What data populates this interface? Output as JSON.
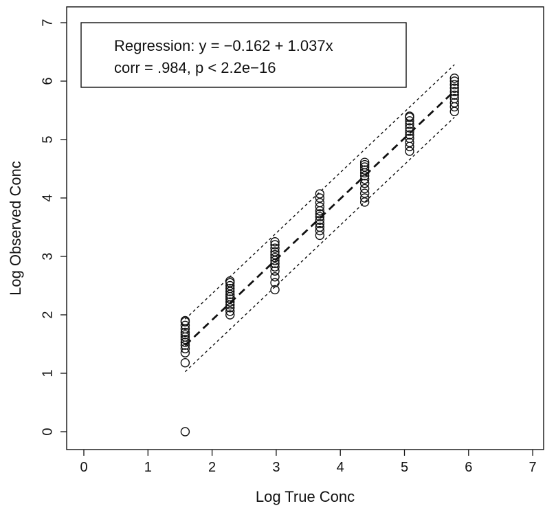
{
  "chart_data": {
    "type": "scatter",
    "title": "",
    "xlabel": "Log True Conc",
    "ylabel": "Log Observed Conc",
    "xlim": [
      -0.3,
      7.3
    ],
    "ylim": [
      -0.3,
      7.3
    ],
    "xticks": [
      0,
      1,
      2,
      3,
      4,
      5,
      6,
      7
    ],
    "yticks": [
      0,
      1,
      2,
      3,
      4,
      5,
      6,
      7
    ],
    "grid": false,
    "legend_position": "top-left",
    "annotations": [
      "Regression: y = −0.162 + 1.037x",
      "corr = .984, p < 2.2e−16"
    ],
    "regression": {
      "intercept": -0.162,
      "slope": 1.037,
      "x_range": [
        1.58,
        5.78
      ]
    },
    "prediction_band": {
      "offset": 0.45
    },
    "groups": [
      {
        "x": 1.58,
        "y": [
          0.0,
          1.18,
          1.35,
          1.42,
          1.48,
          1.53,
          1.58,
          1.62,
          1.66,
          1.7,
          1.76,
          1.82,
          1.88,
          1.9
        ]
      },
      {
        "x": 2.28,
        "y": [
          2.0,
          2.06,
          2.12,
          2.17,
          2.22,
          2.27,
          2.31,
          2.35,
          2.4,
          2.45,
          2.5,
          2.55,
          2.58
        ]
      },
      {
        "x": 2.98,
        "y": [
          2.43,
          2.55,
          2.65,
          2.75,
          2.82,
          2.88,
          2.93,
          2.98,
          3.03,
          3.08,
          3.14,
          3.2,
          3.25
        ]
      },
      {
        "x": 3.68,
        "y": [
          3.36,
          3.44,
          3.5,
          3.56,
          3.62,
          3.68,
          3.73,
          3.78,
          3.85,
          3.92,
          4.0,
          4.07
        ]
      },
      {
        "x": 4.38,
        "y": [
          3.93,
          4.0,
          4.08,
          4.16,
          4.25,
          4.32,
          4.38,
          4.43,
          4.48,
          4.53,
          4.57,
          4.61
        ]
      },
      {
        "x": 5.08,
        "y": [
          4.8,
          4.88,
          4.95,
          5.02,
          5.08,
          5.14,
          5.2,
          5.26,
          5.32,
          5.38,
          5.4
        ]
      },
      {
        "x": 5.78,
        "y": [
          5.48,
          5.56,
          5.63,
          5.7,
          5.76,
          5.82,
          5.88,
          5.94,
          6.0,
          6.05
        ]
      }
    ]
  }
}
